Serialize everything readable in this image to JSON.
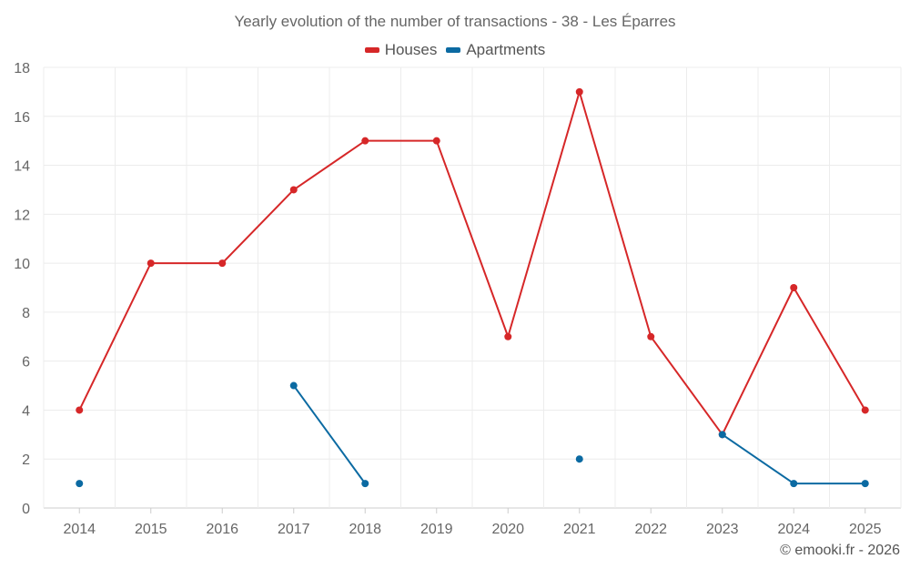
{
  "chart_data": {
    "type": "line",
    "title": "Yearly evolution of the number of transactions - 38 - Les Éparres",
    "xlabel": "",
    "ylabel": "",
    "categories": [
      "2014",
      "2015",
      "2016",
      "2017",
      "2018",
      "2019",
      "2020",
      "2021",
      "2022",
      "2023",
      "2024",
      "2025"
    ],
    "ylim": [
      0,
      18
    ],
    "yticks": [
      0,
      2,
      4,
      6,
      8,
      10,
      12,
      14,
      16,
      18
    ],
    "grid": true,
    "legend_position": "top-center",
    "series": [
      {
        "name": "Houses",
        "color": "#d62728",
        "values": [
          4,
          10,
          10,
          13,
          15,
          15,
          7,
          17,
          7,
          3,
          9,
          4
        ]
      },
      {
        "name": "Apartments",
        "color": "#0b6aa2",
        "values": [
          1,
          null,
          null,
          5,
          1,
          null,
          null,
          2,
          null,
          3,
          1,
          1
        ]
      }
    ]
  },
  "credit": "© emooki.fr - 2026"
}
